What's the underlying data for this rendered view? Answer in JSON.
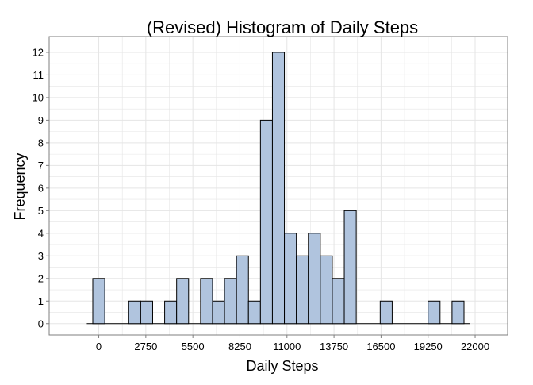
{
  "chart_data": {
    "type": "bar",
    "title": "(Revised) Histogram of Daily Steps",
    "xlabel": "Daily Steps",
    "ylabel": "Frequency",
    "xlim": [
      -2900,
      23900
    ],
    "ylim": [
      -0.5,
      12.7
    ],
    "xticks": [
      0,
      2750,
      5500,
      8250,
      11000,
      13750,
      16500,
      19250,
      22000
    ],
    "yticks": [
      0,
      1,
      2,
      3,
      4,
      5,
      6,
      7,
      8,
      9,
      10,
      11,
      12
    ],
    "grid": true,
    "bin_width": 700,
    "bins": [
      {
        "x": 0,
        "count": 2
      },
      {
        "x": 2100,
        "count": 1
      },
      {
        "x": 2800,
        "count": 1
      },
      {
        "x": 4200,
        "count": 1
      },
      {
        "x": 4900,
        "count": 2
      },
      {
        "x": 6300,
        "count": 2
      },
      {
        "x": 7000,
        "count": 1
      },
      {
        "x": 7700,
        "count": 2
      },
      {
        "x": 8400,
        "count": 3
      },
      {
        "x": 9100,
        "count": 1
      },
      {
        "x": 9800,
        "count": 9
      },
      {
        "x": 10500,
        "count": 12
      },
      {
        "x": 11200,
        "count": 4
      },
      {
        "x": 11900,
        "count": 3
      },
      {
        "x": 12600,
        "count": 4
      },
      {
        "x": 13300,
        "count": 3
      },
      {
        "x": 14000,
        "count": 2
      },
      {
        "x": 14700,
        "count": 5
      },
      {
        "x": 16800,
        "count": 1
      },
      {
        "x": 19600,
        "count": 1
      },
      {
        "x": 21000,
        "count": 1
      }
    ],
    "baseline_range": [
      -700,
      21700
    ],
    "colors": {
      "bar_fill": "#b0c4de",
      "bar_stroke": "#000000",
      "grid": "#e5e5e5",
      "panel_border": "#7f7f7f"
    }
  }
}
